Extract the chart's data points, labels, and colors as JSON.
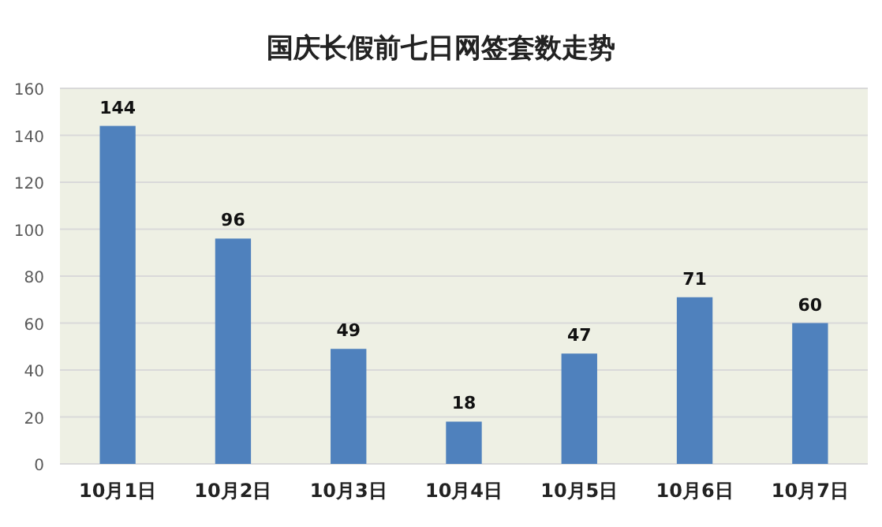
{
  "chart_data": {
    "type": "bar",
    "title": "国庆长假前七日网签套数走势",
    "categories": [
      "10月1日",
      "10月2日",
      "10月3日",
      "10月4日",
      "10月5日",
      "10月6日",
      "10月7日"
    ],
    "values": [
      144,
      96,
      49,
      18,
      47,
      71,
      60
    ],
    "color": "#4f81bd",
    "ylim": [
      0,
      160
    ],
    "yticks": [
      0,
      20,
      40,
      60,
      80,
      100,
      120,
      140,
      160
    ],
    "grid": "y",
    "data_labels": true
  }
}
